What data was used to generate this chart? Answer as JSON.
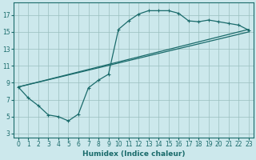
{
  "xlabel": "Humidex (Indice chaleur)",
  "xlim": [
    -0.5,
    23.5
  ],
  "ylim": [
    2.5,
    18.5
  ],
  "xticks": [
    0,
    1,
    2,
    3,
    4,
    5,
    6,
    7,
    8,
    9,
    10,
    11,
    12,
    13,
    14,
    15,
    16,
    17,
    18,
    19,
    20,
    21,
    22,
    23
  ],
  "yticks": [
    3,
    5,
    7,
    9,
    11,
    13,
    15,
    17
  ],
  "background_color": "#cce8ec",
  "grid_color": "#9bbfbf",
  "line_color": "#1a6b6b",
  "line1_x": [
    0,
    1,
    2,
    3,
    4,
    5,
    6,
    7,
    8,
    9,
    10,
    11,
    12,
    13,
    14,
    15,
    16,
    17,
    18,
    19,
    20,
    21,
    22,
    23
  ],
  "line1_y": [
    8.5,
    7.2,
    6.3,
    5.2,
    5.0,
    4.5,
    5.3,
    8.4,
    9.3,
    10.0,
    15.3,
    16.3,
    17.1,
    17.5,
    17.5,
    17.5,
    17.2,
    16.3,
    16.2,
    16.4,
    16.2,
    16.0,
    15.8,
    15.2
  ],
  "line2_x": [
    0,
    23
  ],
  "line2_y": [
    8.5,
    15.0
  ],
  "line3_x": [
    0,
    23
  ],
  "line3_y": [
    8.5,
    15.3
  ]
}
